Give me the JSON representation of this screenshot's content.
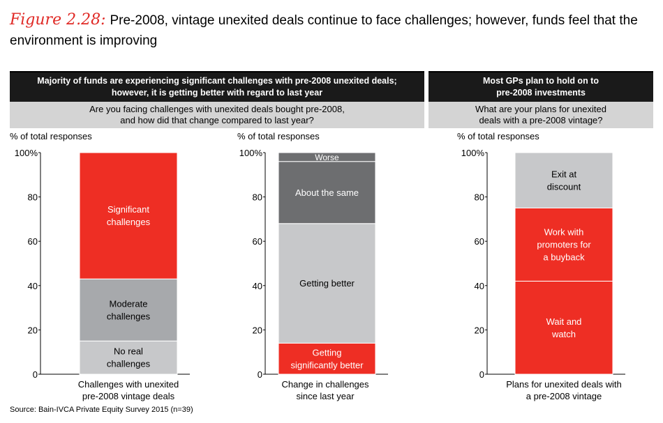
{
  "figure": {
    "label": "Figure 2.28:",
    "title": "Pre-2008, vintage unexited deals continue to face challenges; however, funds feel that the environment is improving"
  },
  "panels": [
    {
      "heading": "Majority of funds are experiencing significant challenges with pre-2008 unexited deals;\nhowever, it is getting better with regard to last year",
      "question": "Are you facing challenges with unexited deals bought pre-2008,\nand how did that change compared to last year?"
    },
    {
      "heading": "Most GPs plan to hold on to\npre-2008 investments",
      "question": "What are your plans for unexited\ndeals with a pre-2008 vintage?"
    }
  ],
  "source": "Source: Bain-IVCA Private Equity Survey 2015 (n=39)",
  "colors": {
    "red": "#ee2e24",
    "dark_gray": "#6d6e70",
    "mid_gray": "#a7a9ac",
    "light_gray": "#c7c8ca"
  },
  "chart_data": [
    {
      "type": "bar",
      "stacked": true,
      "ylabel": "% of total responses",
      "ylim": [
        0,
        100
      ],
      "yticks": [
        "0",
        "20",
        "40",
        "60",
        "80",
        "100%"
      ],
      "xlabel": "Challenges with unexited\npre-2008 vintage deals",
      "segments": [
        {
          "label": "No real\nchallenges",
          "value": 15,
          "color": "light_gray",
          "text_color": "#000000"
        },
        {
          "label": "Moderate\nchallenges",
          "value": 28,
          "color": "mid_gray",
          "text_color": "#000000"
        },
        {
          "label": "Significant\nchallenges",
          "value": 57,
          "color": "red",
          "text_color": "#ffffff"
        }
      ]
    },
    {
      "type": "bar",
      "stacked": true,
      "ylabel": "% of total responses",
      "ylim": [
        0,
        100
      ],
      "yticks": [
        "0",
        "20",
        "40",
        "60",
        "80",
        "100%"
      ],
      "xlabel": "Change in challenges\nsince last year",
      "segments": [
        {
          "label": "Getting\nsignificantly better",
          "value": 14,
          "color": "red",
          "text_color": "#ffffff"
        },
        {
          "label": "Getting better",
          "value": 54,
          "color": "light_gray",
          "text_color": "#000000"
        },
        {
          "label": "About the same",
          "value": 28,
          "color": "dark_gray",
          "text_color": "#ffffff"
        },
        {
          "label": "Worse",
          "value": 4,
          "color": "dark_gray",
          "text_color": "#ffffff"
        }
      ]
    },
    {
      "type": "bar",
      "stacked": true,
      "ylabel": "% of total responses",
      "ylim": [
        0,
        100
      ],
      "yticks": [
        "0",
        "20",
        "40",
        "60",
        "80",
        "100%"
      ],
      "xlabel": "Plans for unexited deals with\na pre-2008 vintage",
      "segments": [
        {
          "label": "Wait and\nwatch",
          "value": 42,
          "color": "red",
          "text_color": "#ffffff"
        },
        {
          "label": "Work with\npromoters for\na buyback",
          "value": 33,
          "color": "red",
          "text_color": "#ffffff"
        },
        {
          "label": "Exit at\ndiscount",
          "value": 25,
          "color": "light_gray",
          "text_color": "#000000"
        }
      ]
    }
  ]
}
